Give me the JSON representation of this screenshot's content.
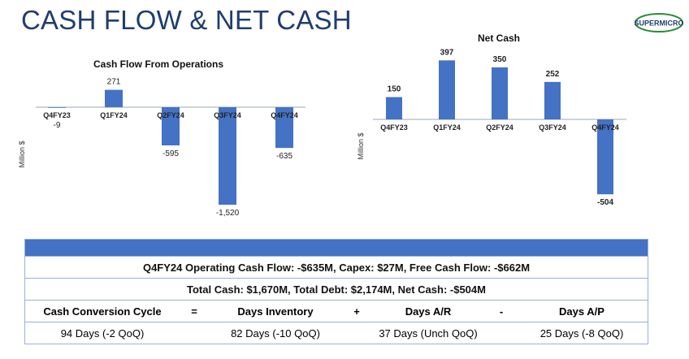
{
  "page_title": "CASH FLOW & NET CASH",
  "logo_text": "SUPERMICRO",
  "accent": "#4472c4",
  "chart_data": [
    {
      "type": "bar",
      "title": "Cash Flow From Operations",
      "ylabel": "Million $",
      "categories": [
        "Q4FY23",
        "Q1FY24",
        "Q2FY24",
        "Q3FY24",
        "Q4FY24"
      ],
      "values": [
        -9,
        271,
        -595,
        -1520,
        -635
      ],
      "labels": [
        "-9",
        "271",
        "-595",
        "-1,520",
        "-635"
      ],
      "color": "#4472c4"
    },
    {
      "type": "bar",
      "title": "Net Cash",
      "ylabel": "Million $",
      "categories": [
        "Q4FY23",
        "Q1FY24",
        "Q2FY24",
        "Q3FY24",
        "Q4FY24"
      ],
      "values": [
        150,
        397,
        350,
        252,
        -504
      ],
      "labels": [
        "150",
        "397",
        "350",
        "252",
        "-504"
      ],
      "color": "#4472c4"
    }
  ],
  "summary": {
    "line1": "Q4FY24 Operating Cash Flow: -$635M, Capex: $27M, Free Cash Flow: -$662M",
    "line2": "Total Cash: $1,670M, Total Debt: $2,174M, Net Cash: -$504M",
    "ccc_headers": [
      "Cash Conversion Cycle",
      "=",
      "Days Inventory",
      "+",
      "Days A/R",
      "-",
      "Days A/P"
    ],
    "ccc_values": [
      "94 Days (-2 QoQ)",
      "82 Days (-10 QoQ)",
      "37 Days (Unch QoQ)",
      "25 Days (-8 QoQ)"
    ]
  }
}
